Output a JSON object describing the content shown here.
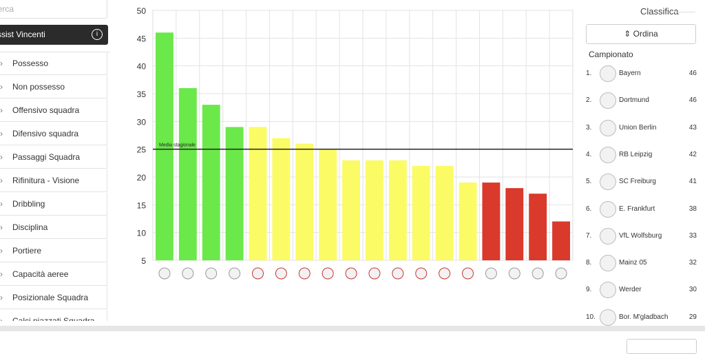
{
  "search": {
    "placeholder": "Cerca"
  },
  "menu": {
    "header": "Assist Vincenti",
    "items": [
      "Possesso",
      "Non possesso",
      "Offensivo squadra",
      "Difensivo squadra",
      "Passaggi Squadra",
      "Rifinitura - Visione",
      "Dribbling",
      "Disciplina",
      "Portiere",
      "Capacità aeree",
      "Posizionale Squadra",
      "Calci piazzati Squadra"
    ]
  },
  "chart_data": {
    "type": "bar",
    "categories": [
      null,
      null,
      null,
      null,
      null,
      null,
      null,
      null,
      null,
      null,
      null,
      null,
      null,
      null,
      null,
      null,
      null,
      null
    ],
    "values": [
      46,
      36,
      33,
      29,
      29,
      27,
      26,
      25,
      23,
      23,
      23,
      22,
      22,
      19,
      19,
      18,
      17,
      12
    ],
    "colors": [
      "#6be84a",
      "#6be84a",
      "#6be84a",
      "#6be84a",
      "#fbfb66",
      "#fbfb66",
      "#fbfb66",
      "#fbfb66",
      "#fbfb66",
      "#fbfb66",
      "#fbfb66",
      "#fbfb66",
      "#fbfb66",
      "#fbfb66",
      "#d93a2b",
      "#d93a2b",
      "#d93a2b",
      "#d93a2b"
    ],
    "ylim": [
      5,
      50
    ],
    "yticks": [
      5,
      10,
      15,
      20,
      25,
      30,
      35,
      40,
      45,
      50
    ],
    "grid": true,
    "reference_line": {
      "label": "Media stagionale",
      "value": 25
    }
  },
  "ranking": {
    "title": "Classifica",
    "sort_button": "Ordina",
    "competition": "Campionato",
    "rows": [
      [
        "1.",
        "Bayern",
        46
      ],
      [
        "2.",
        "Dortmund",
        46
      ],
      [
        "3.",
        "Union Berlin",
        43
      ],
      [
        "4.",
        "RB Leipzig",
        42
      ],
      [
        "5.",
        "SC Freiburg",
        41
      ],
      [
        "6.",
        "E. Frankfurt",
        38
      ],
      [
        "7.",
        "VfL Wolfsburg",
        33
      ],
      [
        "8.",
        "Mainz 05",
        32
      ],
      [
        "9.",
        "Werder",
        30
      ],
      [
        "10.",
        "Bor. M'gladbach",
        29
      ]
    ]
  }
}
